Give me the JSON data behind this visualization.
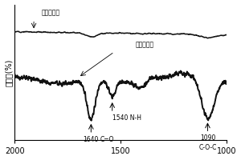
{
  "ylabel": "透过率(%)",
  "bg_color": "#ffffff",
  "line_color": "#111111",
  "label1": "纳米线电极",
  "label2": "纳米线电极",
  "seed": 12
}
